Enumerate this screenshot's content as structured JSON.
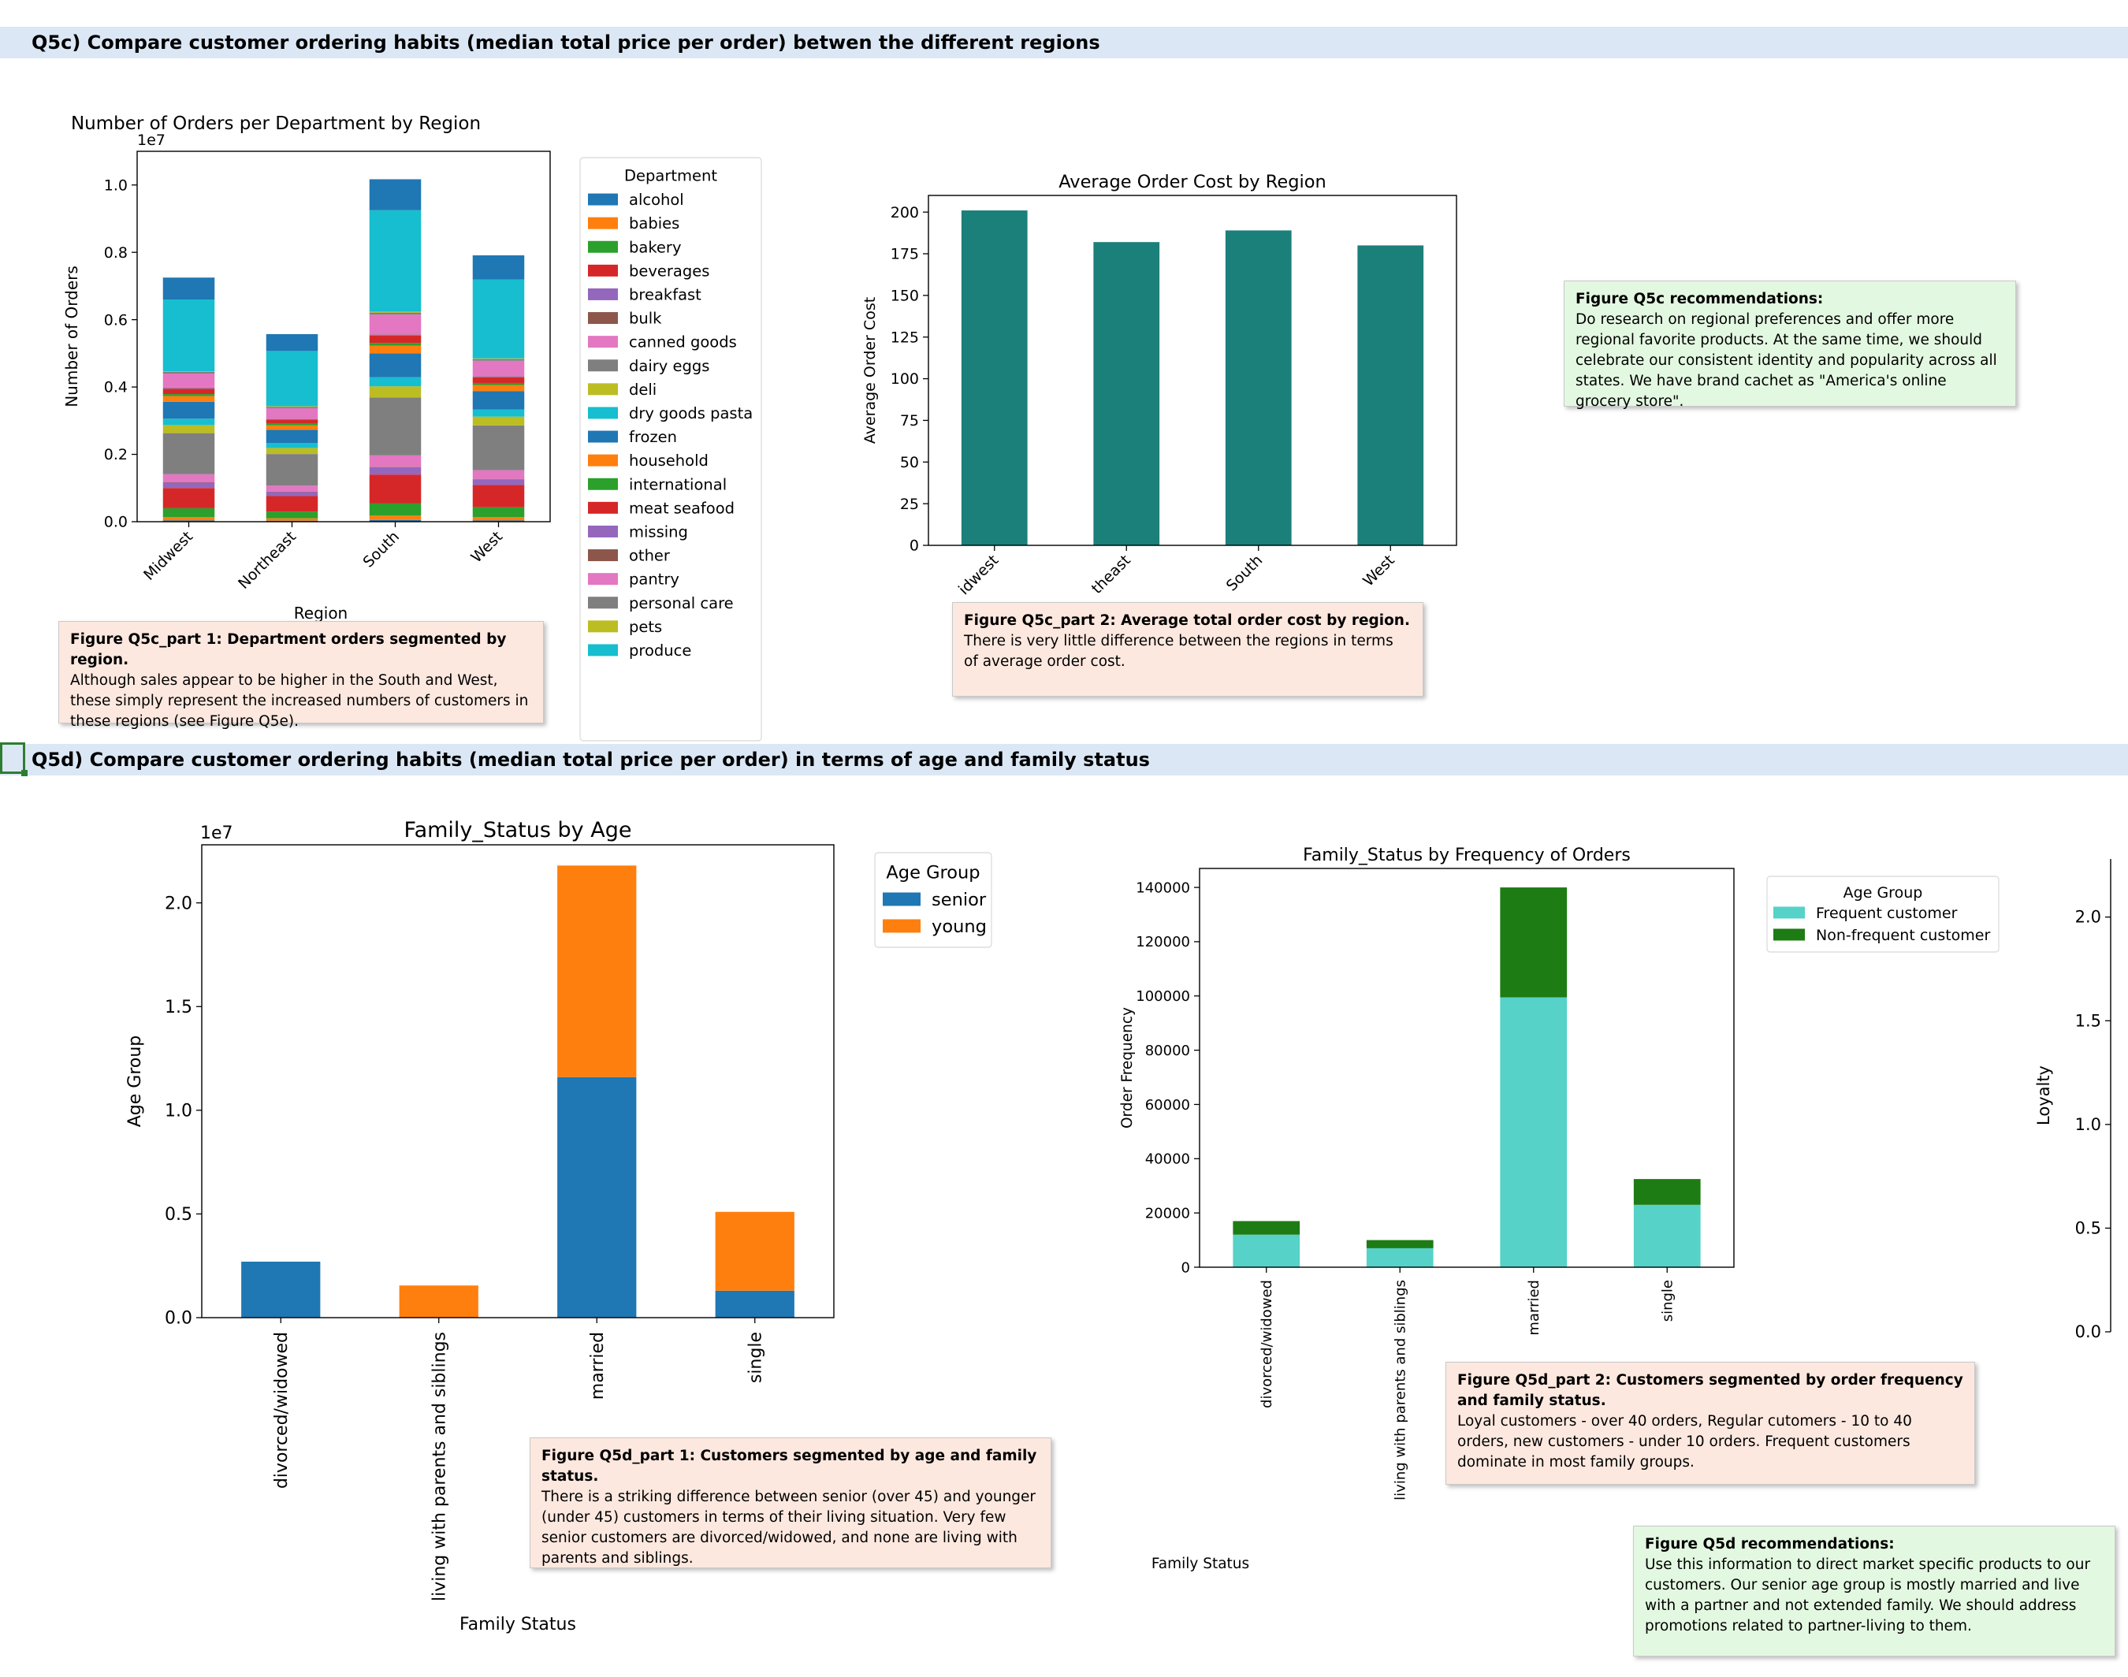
{
  "sections": {
    "q5c_title": "Q5c) Compare customer ordering habits (median total price per order) betwen the different regions",
    "q5d_title": "Q5d) Compare customer ordering habits (median total price per order) in terms of age and family status"
  },
  "notes": {
    "q5c_part1": {
      "head": "Figure Q5c_part 1: Department orders segmented by region.",
      "body": "Although sales appear to be higher in the South and West, these simply represent the increased numbers of customers in these regions (see Figure Q5e)."
    },
    "q5c_part2": {
      "head": "Figure Q5c_part 2: Average total order cost by region.",
      "body": "There is very little difference between the regions in terms of average order cost."
    },
    "q5c_recs": {
      "head": "Figure Q5c recommendations:",
      "body": "Do research on regional preferences and offer more regional favorite products. At the same time, we should celebrate our consistent identity and popularity across all states. We have brand cachet as \"America's online grocery store\"."
    },
    "q5d_part1": {
      "head": "Figure Q5d_part 1: Customers segmented by age and family status.",
      "body": "There is a striking difference between senior (over 45) and younger (under 45) customers in terms of their living situation. Very few senior customers are divorced/widowed, and none are living with parents and siblings."
    },
    "q5d_part2": {
      "head": "Figure Q5d_part 2: Customers segmented by order frequency and family status.",
      "body": "Loyal customers - over 40 orders, Regular cutomers - 10 to 40 orders, new customers - under 10 orders. Frequent customers dominate in most family groups."
    },
    "q5d_recs": {
      "head": "Figure Q5d recommendations:",
      "body": "Use this information to direct market specific products to our customers. Our senior age group is mostly married and live with a partner and not extended family. We should address promotions related to partner-living to them."
    }
  },
  "chart_data": [
    {
      "id": "dept_by_region",
      "type": "bar",
      "stacked": true,
      "title": "Number of Orders per Department by Region",
      "xlabel": "Region",
      "ylabel": "Number of Orders",
      "offset_label": "1e7",
      "ylim": [
        0,
        1.1
      ],
      "yticks": [
        "0.0",
        "0.2",
        "0.4",
        "0.6",
        "0.8",
        "1.0"
      ],
      "categories": [
        "Midwest",
        "Northeast",
        "South",
        "West"
      ],
      "legend_title": "Department",
      "legend_position": "right",
      "series": [
        {
          "name": "alcohol",
          "color": "#1f77b4",
          "values": [
            0.004,
            0.003,
            0.005,
            0.004
          ]
        },
        {
          "name": "babies",
          "color": "#ff7f0e",
          "values": [
            0.01,
            0.007,
            0.013,
            0.01
          ]
        },
        {
          "name": "bakery",
          "color": "#2ca02c",
          "values": [
            0.026,
            0.02,
            0.037,
            0.029
          ]
        },
        {
          "name": "beverages",
          "color": "#d62728",
          "values": [
            0.06,
            0.046,
            0.085,
            0.066
          ]
        },
        {
          "name": "breakfast",
          "color": "#9467bd",
          "values": [
            0.016,
            0.012,
            0.022,
            0.017
          ]
        },
        {
          "name": "bulk",
          "color": "#8c564b",
          "values": [
            0.001,
            0.001,
            0.001,
            0.001
          ]
        },
        {
          "name": "canned goods",
          "color": "#e377c2",
          "values": [
            0.024,
            0.018,
            0.034,
            0.026
          ]
        },
        {
          "name": "dairy eggs",
          "color": "#7f7f7f",
          "values": [
            0.122,
            0.094,
            0.172,
            0.133
          ]
        },
        {
          "name": "deli",
          "color": "#bcbd22",
          "values": [
            0.024,
            0.018,
            0.033,
            0.026
          ]
        },
        {
          "name": "dry goods pasta",
          "color": "#17becf",
          "values": [
            0.019,
            0.015,
            0.027,
            0.021
          ]
        },
        {
          "name": "frozen",
          "color": "#1f77b4",
          "values": [
            0.05,
            0.039,
            0.071,
            0.055
          ]
        },
        {
          "name": "household",
          "color": "#ff7f0e",
          "values": [
            0.017,
            0.013,
            0.023,
            0.018
          ]
        },
        {
          "name": "international",
          "color": "#2ca02c",
          "values": [
            0.006,
            0.005,
            0.008,
            0.006
          ]
        },
        {
          "name": "meat seafood",
          "color": "#d62728",
          "values": [
            0.016,
            0.012,
            0.022,
            0.017
          ]
        },
        {
          "name": "missing",
          "color": "#9467bd",
          "values": [
            0.002,
            0.001,
            0.002,
            0.002
          ]
        },
        {
          "name": "other",
          "color": "#8c564b",
          "values": [
            0.001,
            0.001,
            0.001,
            0.001
          ]
        },
        {
          "name": "pantry",
          "color": "#e377c2",
          "values": [
            0.042,
            0.032,
            0.059,
            0.046
          ]
        },
        {
          "name": "personal care",
          "color": "#7f7f7f",
          "values": [
            0.005,
            0.004,
            0.006,
            0.005
          ]
        },
        {
          "name": "pets",
          "color": "#bcbd22",
          "values": [
            0.002,
            0.002,
            0.003,
            0.002
          ]
        },
        {
          "name": "produce",
          "color": "#17becf",
          "values": [
            0.213,
            0.164,
            0.301,
            0.234
          ]
        },
        {
          "name": "",
          "color": "#1f77b4",
          "values": [
            0.065,
            0.05,
            0.092,
            0.072
          ]
        }
      ]
    },
    {
      "id": "avg_order_cost",
      "type": "bar",
      "title": "Average Order Cost by Region",
      "xlabel": "",
      "ylabel": "Average Order Cost",
      "ylim": [
        0,
        210
      ],
      "yticks": [
        "0",
        "25",
        "50",
        "75",
        "100",
        "125",
        "150",
        "175",
        "200"
      ],
      "categories": [
        "Midwest",
        "Northeast",
        "South",
        "West"
      ],
      "tick_labels_shown": [
        "idwest",
        "theast",
        "South",
        "West"
      ],
      "color": "#1b7f7a",
      "values": [
        201,
        182,
        189,
        180
      ]
    },
    {
      "id": "family_by_age",
      "type": "bar",
      "stacked": true,
      "title": "Family_Status by Age",
      "xlabel": "Family Status",
      "ylabel": "Age Group",
      "offset_label": "1e7",
      "ylim": [
        0,
        2.28
      ],
      "yticks": [
        "0.0",
        "0.5",
        "1.0",
        "1.5",
        "2.0"
      ],
      "categories": [
        "divorced/widowed",
        "living with parents and siblings",
        "married",
        "single"
      ],
      "legend_title": "Age Group",
      "legend_position": "top-right",
      "series": [
        {
          "name": "senior",
          "color": "#1f77b4",
          "values": [
            0.27,
            0.0,
            1.16,
            0.13
          ]
        },
        {
          "name": "young",
          "color": "#ff7f0e",
          "values": [
            0.0,
            0.155,
            1.02,
            0.38
          ]
        }
      ]
    },
    {
      "id": "family_by_frequency",
      "type": "bar",
      "stacked": true,
      "title": "Family_Status by Frequency of Orders",
      "xlabel": "Family Status",
      "ylabel": "Order Frequency",
      "ylim": [
        0,
        147000
      ],
      "yticks": [
        "0",
        "20000",
        "40000",
        "60000",
        "80000",
        "100000",
        "120000",
        "140000"
      ],
      "categories": [
        "divorced/widowed",
        "living with parents and siblings",
        "married",
        "single"
      ],
      "legend_title": "Age Group",
      "legend_position": "top-right",
      "series": [
        {
          "name": "Frequent customer",
          "color": "#56d2c8",
          "values": [
            12000,
            7000,
            99500,
            23000
          ]
        },
        {
          "name": "Non-frequent customer",
          "color": "#1d7c13",
          "values": [
            5000,
            3000,
            40500,
            9500
          ]
        }
      ]
    },
    {
      "id": "loyalty_partial",
      "type": "bar",
      "title": "",
      "ylabel": "Loyalty",
      "yticks": [
        "0.0",
        "0.5",
        "1.0",
        "1.5",
        "2.0"
      ],
      "ylim": [
        0,
        2.28
      ],
      "categories": [],
      "values": []
    }
  ]
}
